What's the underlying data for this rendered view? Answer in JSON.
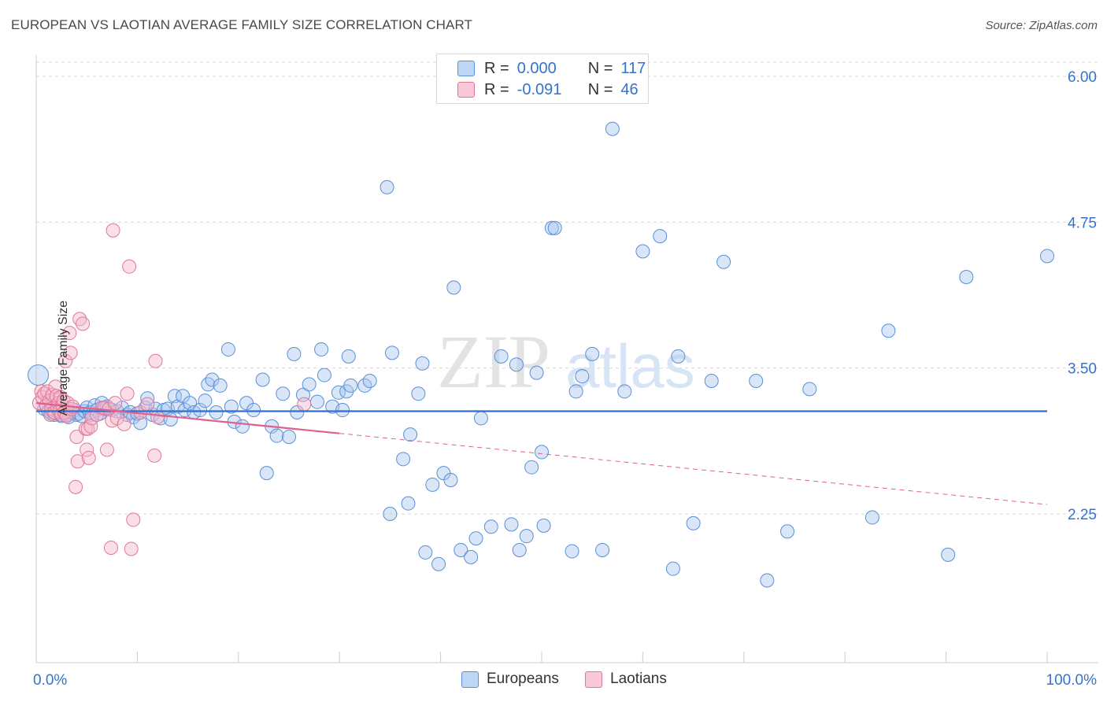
{
  "header": {
    "title": "EUROPEAN VS LAOTIAN AVERAGE FAMILY SIZE CORRELATION CHART",
    "source": "Source: ZipAtlas.com"
  },
  "legend": {
    "rows": [
      {
        "r_label": "R =",
        "r_value": "0.000",
        "n_label": "N =",
        "n_value": "117"
      },
      {
        "r_label": "R =",
        "r_value": "-0.091",
        "n_label": "N =",
        "n_value": "46"
      }
    ],
    "series_labels": [
      "Europeans",
      "Laotians"
    ]
  },
  "colors": {
    "european_fill": "#a8c8f0",
    "european_stroke": "#5a8fd8",
    "european_line": "#2f6fd0",
    "laotian_fill": "#f6b8cb",
    "laotian_stroke": "#e07799",
    "laotian_line": "#e0608e",
    "axis_label": "#3572cc",
    "grid": "#d9d9d9"
  },
  "watermark": {
    "zip": "ZIP",
    "atlas": "atlas"
  },
  "chart_data": {
    "type": "scatter",
    "title": "EUROPEAN VS LAOTIAN AVERAGE FAMILY SIZE CORRELATION CHART",
    "xlabel": "",
    "ylabel": "Average Family Size",
    "xlim": [
      0,
      100
    ],
    "ylim": [
      1.0,
      6.1
    ],
    "x_tick_labels": {
      "min": "0.0%",
      "max": "100.0%"
    },
    "y_ticks": [
      2.25,
      3.5,
      4.75,
      6.0
    ],
    "y_tick_labels": [
      "2.25",
      "3.50",
      "4.75",
      "6.00"
    ],
    "grid": true,
    "series": [
      {
        "name": "Europeans",
        "R": 0.0,
        "N": 117,
        "trend": {
          "x": [
            0,
            100
          ],
          "y": [
            3.13,
            3.13
          ],
          "style": "solid"
        },
        "points": [
          [
            0.2,
            3.44
          ],
          [
            0.8,
            3.15
          ],
          [
            1.0,
            3.18
          ],
          [
            1.2,
            3.13
          ],
          [
            1.5,
            3.11
          ],
          [
            1.8,
            3.1
          ],
          [
            2.0,
            3.17
          ],
          [
            2.2,
            3.12
          ],
          [
            2.5,
            3.09
          ],
          [
            2.8,
            3.13
          ],
          [
            3.0,
            3.1
          ],
          [
            3.2,
            3.08
          ],
          [
            3.5,
            3.12
          ],
          [
            3.8,
            3.14
          ],
          [
            4.0,
            3.1
          ],
          [
            4.2,
            3.11
          ],
          [
            4.5,
            3.09
          ],
          [
            4.8,
            3.13
          ],
          [
            5.0,
            3.16
          ],
          [
            5.3,
            3.12
          ],
          [
            5.5,
            3.1
          ],
          [
            5.8,
            3.18
          ],
          [
            6.0,
            3.14
          ],
          [
            6.3,
            3.11
          ],
          [
            6.5,
            3.2
          ],
          [
            6.8,
            3.15
          ],
          [
            7.0,
            3.17
          ],
          [
            7.5,
            3.14
          ],
          [
            8.0,
            3.13
          ],
          [
            8.5,
            3.16
          ],
          [
            9.0,
            3.1
          ],
          [
            9.3,
            3.12
          ],
          [
            9.6,
            3.08
          ],
          [
            10.0,
            3.11
          ],
          [
            10.3,
            3.03
          ],
          [
            10.8,
            3.16
          ],
          [
            11.0,
            3.24
          ],
          [
            11.5,
            3.1
          ],
          [
            11.8,
            3.15
          ],
          [
            12.3,
            3.07
          ],
          [
            12.6,
            3.14
          ],
          [
            13.0,
            3.15
          ],
          [
            13.3,
            3.06
          ],
          [
            13.7,
            3.26
          ],
          [
            14.0,
            3.17
          ],
          [
            14.5,
            3.26
          ],
          [
            14.7,
            3.14
          ],
          [
            15.2,
            3.2
          ],
          [
            15.6,
            3.12
          ],
          [
            16.2,
            3.14
          ],
          [
            16.7,
            3.22
          ],
          [
            17.0,
            3.36
          ],
          [
            17.4,
            3.4
          ],
          [
            17.8,
            3.12
          ],
          [
            18.2,
            3.35
          ],
          [
            19.0,
            3.66
          ],
          [
            19.3,
            3.17
          ],
          [
            19.6,
            3.04
          ],
          [
            20.4,
            3.0
          ],
          [
            20.8,
            3.2
          ],
          [
            21.5,
            3.14
          ],
          [
            22.4,
            3.4
          ],
          [
            22.8,
            2.6
          ],
          [
            23.3,
            3.0
          ],
          [
            23.8,
            2.92
          ],
          [
            24.4,
            3.28
          ],
          [
            25.0,
            2.91
          ],
          [
            25.5,
            3.62
          ],
          [
            25.8,
            3.12
          ],
          [
            26.4,
            3.27
          ],
          [
            27.0,
            3.36
          ],
          [
            27.8,
            3.21
          ],
          [
            28.2,
            3.66
          ],
          [
            28.5,
            3.44
          ],
          [
            29.3,
            3.17
          ],
          [
            29.9,
            3.29
          ],
          [
            30.3,
            3.14
          ],
          [
            30.7,
            3.3
          ],
          [
            31.1,
            3.35
          ],
          [
            30.9,
            3.6
          ],
          [
            32.5,
            3.35
          ],
          [
            33.0,
            3.39
          ],
          [
            34.7,
            5.05
          ],
          [
            35.2,
            3.63
          ],
          [
            36.3,
            2.72
          ],
          [
            36.8,
            2.34
          ],
          [
            37.8,
            3.28
          ],
          [
            38.2,
            3.54
          ],
          [
            37.0,
            2.93
          ],
          [
            35.0,
            2.25
          ],
          [
            38.5,
            1.92
          ],
          [
            39.2,
            2.5
          ],
          [
            39.8,
            1.82
          ],
          [
            40.3,
            2.6
          ],
          [
            41.0,
            2.54
          ],
          [
            41.3,
            4.19
          ],
          [
            42.0,
            1.94
          ],
          [
            43.0,
            1.88
          ],
          [
            43.5,
            2.04
          ],
          [
            44.0,
            3.07
          ],
          [
            45.0,
            2.14
          ],
          [
            46.0,
            3.6
          ],
          [
            47.0,
            2.16
          ],
          [
            47.8,
            1.94
          ],
          [
            47.5,
            3.53
          ],
          [
            48.5,
            2.06
          ],
          [
            49.0,
            2.65
          ],
          [
            49.5,
            3.46
          ],
          [
            50.0,
            2.78
          ],
          [
            50.2,
            2.15
          ],
          [
            51.0,
            4.7
          ],
          [
            51.3,
            4.7
          ],
          [
            53.0,
            1.93
          ],
          [
            53.4,
            3.3
          ],
          [
            54.0,
            3.43
          ],
          [
            55.0,
            3.62
          ],
          [
            56.0,
            1.94
          ],
          [
            57.0,
            5.55
          ],
          [
            58.2,
            3.3
          ],
          [
            60.0,
            4.5
          ],
          [
            61.7,
            4.63
          ],
          [
            63.0,
            1.78
          ],
          [
            63.5,
            3.6
          ],
          [
            65.0,
            2.17
          ],
          [
            66.8,
            3.39
          ],
          [
            68.0,
            4.41
          ],
          [
            71.2,
            3.39
          ],
          [
            72.3,
            1.68
          ],
          [
            74.3,
            2.1
          ],
          [
            76.5,
            3.32
          ],
          [
            82.7,
            2.22
          ],
          [
            84.3,
            3.82
          ],
          [
            90.2,
            1.9
          ],
          [
            92.0,
            4.28
          ],
          [
            100.0,
            4.46
          ]
        ]
      },
      {
        "name": "Laotians",
        "R": -0.091,
        "N": 46,
        "trend": {
          "x": [
            0,
            30
          ],
          "y": [
            3.2,
            2.94
          ],
          "style": "solid",
          "extension": {
            "x": [
              30,
              100
            ],
            "y": [
              2.94,
              2.33
            ],
            "style": "dashed"
          }
        },
        "points": [
          [
            0.3,
            3.2
          ],
          [
            0.5,
            3.3
          ],
          [
            0.6,
            3.25
          ],
          [
            0.8,
            3.28
          ],
          [
            1.0,
            3.18
          ],
          [
            1.1,
            3.3
          ],
          [
            1.3,
            3.22
          ],
          [
            1.4,
            3.1
          ],
          [
            1.5,
            3.15
          ],
          [
            1.6,
            3.27
          ],
          [
            1.8,
            3.12
          ],
          [
            1.9,
            3.34
          ],
          [
            2.0,
            3.26
          ],
          [
            2.1,
            3.16
          ],
          [
            2.2,
            3.2
          ],
          [
            2.3,
            3.13
          ],
          [
            2.4,
            3.25
          ],
          [
            2.5,
            3.1
          ],
          [
            2.6,
            3.18
          ],
          [
            2.7,
            3.22
          ],
          [
            2.8,
            3.12
          ],
          [
            2.9,
            3.56
          ],
          [
            3.0,
            3.09
          ],
          [
            3.1,
            3.2
          ],
          [
            3.3,
            3.8
          ],
          [
            3.4,
            3.63
          ],
          [
            3.5,
            3.15
          ],
          [
            3.6,
            3.17
          ],
          [
            3.9,
            2.48
          ],
          [
            4.0,
            2.91
          ],
          [
            4.1,
            2.7
          ],
          [
            4.3,
            3.92
          ],
          [
            4.6,
            3.88
          ],
          [
            4.9,
            2.98
          ],
          [
            5.0,
            2.8
          ],
          [
            5.1,
            2.98
          ],
          [
            5.2,
            2.73
          ],
          [
            5.4,
            3.0
          ],
          [
            5.5,
            3.07
          ],
          [
            6.0,
            3.1
          ],
          [
            6.5,
            3.16
          ],
          [
            6.7,
            3.16
          ],
          [
            7.0,
            2.8
          ],
          [
            7.2,
            3.15
          ],
          [
            7.5,
            3.05
          ],
          [
            7.8,
            3.2
          ],
          [
            8.0,
            3.07
          ],
          [
            9.0,
            3.28
          ],
          [
            10.3,
            3.12
          ],
          [
            11.0,
            3.19
          ],
          [
            7.6,
            4.68
          ],
          [
            9.6,
            2.2
          ],
          [
            8.7,
            3.02
          ],
          [
            12.0,
            3.08
          ],
          [
            11.7,
            2.75
          ],
          [
            9.4,
            1.95
          ],
          [
            7.4,
            1.96
          ],
          [
            11.8,
            3.56
          ],
          [
            9.2,
            4.37
          ],
          [
            26.5,
            3.19
          ]
        ]
      }
    ]
  }
}
